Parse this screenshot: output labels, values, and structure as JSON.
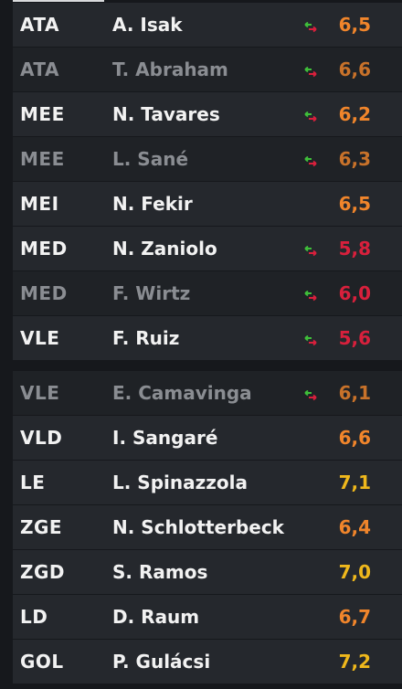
{
  "players": [
    {
      "position": "ATA",
      "name": "A. Isak",
      "rating": "6,5",
      "swap": true,
      "dim": false,
      "color": "orange"
    },
    {
      "position": "ATA",
      "name": "T. Abraham",
      "rating": "6,6",
      "swap": true,
      "dim": true,
      "color": "orange"
    },
    {
      "position": "MEE",
      "name": "N. Tavares",
      "rating": "6,2",
      "swap": true,
      "dim": false,
      "color": "orange"
    },
    {
      "position": "MEE",
      "name": "L. Sané",
      "rating": "6,3",
      "swap": true,
      "dim": true,
      "color": "orange"
    },
    {
      "position": "MEI",
      "name": "N. Fekir",
      "rating": "6,5",
      "swap": false,
      "dim": false,
      "color": "orange"
    },
    {
      "position": "MED",
      "name": "N. Zaniolo",
      "rating": "5,8",
      "swap": true,
      "dim": false,
      "color": "red"
    },
    {
      "position": "MED",
      "name": "F. Wirtz",
      "rating": "6,0",
      "swap": true,
      "dim": true,
      "color": "red"
    },
    {
      "position": "VLE",
      "name": "F. Ruiz",
      "rating": "5,6",
      "swap": true,
      "dim": false,
      "color": "red"
    },
    {
      "position": "VLE",
      "name": "E. Camavinga",
      "rating": "6,1",
      "swap": true,
      "dim": true,
      "color": "orange"
    },
    {
      "position": "VLD",
      "name": "I. Sangaré",
      "rating": "6,6",
      "swap": false,
      "dim": false,
      "color": "orange"
    },
    {
      "position": "LE",
      "name": "L. Spinazzola",
      "rating": "7,1",
      "swap": false,
      "dim": false,
      "color": "yellow"
    },
    {
      "position": "ZGE",
      "name": "N. Schlotterbeck",
      "rating": "6,4",
      "swap": false,
      "dim": false,
      "color": "orange"
    },
    {
      "position": "ZGD",
      "name": "S. Ramos",
      "rating": "7,0",
      "swap": false,
      "dim": false,
      "color": "yellow"
    },
    {
      "position": "LD",
      "name": "D. Raum",
      "rating": "6,7",
      "swap": false,
      "dim": false,
      "color": "orange"
    },
    {
      "position": "GOL",
      "name": "P. Gulácsi",
      "rating": "7,2",
      "swap": false,
      "dim": false,
      "color": "yellow"
    }
  ],
  "colors": {
    "orange": "#f0852b",
    "red": "#d8203c",
    "yellow": "#efb81c",
    "swap_green": "#3fbf3a",
    "swap_red": "#d8203c"
  },
  "icons": {
    "swap": "swap-arrows-icon"
  }
}
